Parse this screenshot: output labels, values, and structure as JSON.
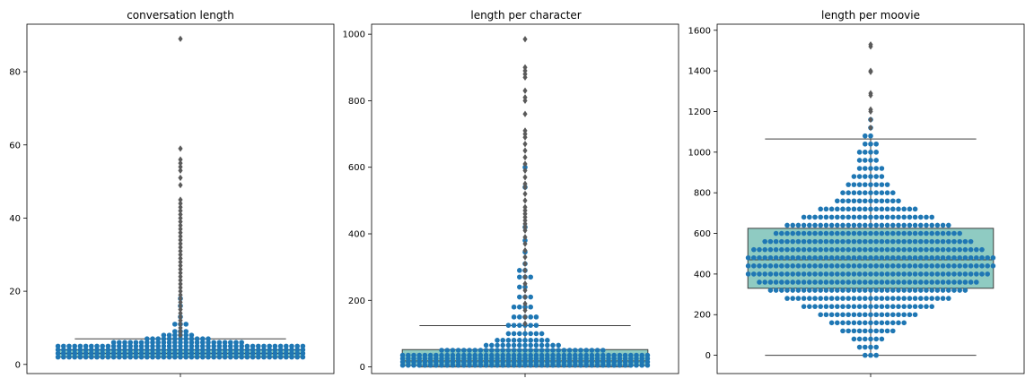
{
  "chart_data": [
    {
      "type": "box+swarm",
      "title": "conversation length",
      "xlabel": "",
      "ylabel": "",
      "ylim": [
        -2.5,
        93
      ],
      "yticks": [
        0,
        20,
        40,
        60,
        80
      ],
      "box": {
        "q1": 2,
        "median": 3,
        "q3": 4,
        "whisker_low": 2,
        "whisker_high": 7
      },
      "outliers": [
        8,
        9,
        10,
        11,
        12,
        13,
        14,
        15,
        16,
        17,
        18,
        19,
        20,
        21,
        22,
        23,
        24,
        25,
        26,
        27,
        28,
        29,
        30,
        31,
        32,
        33,
        34,
        35,
        36,
        37,
        38,
        39,
        40,
        41,
        42,
        43,
        44,
        45,
        49,
        51,
        53,
        54,
        55,
        56,
        59,
        89
      ],
      "swarm_levels": [
        {
          "y": 2,
          "count": 120
        },
        {
          "y": 3,
          "count": 110
        },
        {
          "y": 4,
          "count": 90
        },
        {
          "y": 5,
          "count": 80
        },
        {
          "y": 6,
          "count": 24
        },
        {
          "y": 7,
          "count": 12
        },
        {
          "y": 8,
          "count": 6
        },
        {
          "y": 9,
          "count": 3
        },
        {
          "y": 11,
          "count": 3
        },
        {
          "y": 13,
          "count": 1
        },
        {
          "y": 16,
          "count": 1
        },
        {
          "y": 18,
          "count": 1
        }
      ],
      "box_color": "#8fcbc2",
      "point_color": "#1f77b4"
    },
    {
      "type": "box+swarm",
      "title": "length per character",
      "xlabel": "",
      "ylabel": "",
      "ylim": [
        -20,
        1030
      ],
      "yticks": [
        0,
        200,
        400,
        600,
        800,
        1000
      ],
      "box": {
        "q1": 4,
        "median": 18,
        "q3": 52,
        "whisker_low": 0,
        "whisker_high": 124
      },
      "outliers": [
        130,
        150,
        170,
        190,
        210,
        230,
        250,
        270,
        290,
        310,
        330,
        350,
        370,
        390,
        410,
        420,
        430,
        440,
        450,
        460,
        470,
        480,
        500,
        520,
        540,
        550,
        570,
        590,
        610,
        630,
        650,
        670,
        690,
        700,
        710,
        760,
        800,
        810,
        830,
        870,
        880,
        890,
        900,
        985
      ],
      "swarm_levels": [
        {
          "y": 5,
          "count": 100
        },
        {
          "y": 15,
          "count": 90
        },
        {
          "y": 25,
          "count": 80
        },
        {
          "y": 35,
          "count": 60
        },
        {
          "y": 50,
          "count": 30
        },
        {
          "y": 65,
          "count": 14
        },
        {
          "y": 80,
          "count": 10
        },
        {
          "y": 100,
          "count": 7
        },
        {
          "y": 125,
          "count": 6
        },
        {
          "y": 150,
          "count": 5
        },
        {
          "y": 180,
          "count": 4
        },
        {
          "y": 210,
          "count": 3
        },
        {
          "y": 240,
          "count": 2
        },
        {
          "y": 270,
          "count": 3
        },
        {
          "y": 290,
          "count": 2
        },
        {
          "y": 310,
          "count": 1
        },
        {
          "y": 345,
          "count": 1
        },
        {
          "y": 380,
          "count": 1
        },
        {
          "y": 420,
          "count": 1
        },
        {
          "y": 540,
          "count": 1
        },
        {
          "y": 600,
          "count": 1
        }
      ],
      "box_color": "#8fcbc2",
      "point_color": "#1f77b4"
    },
    {
      "type": "box+swarm",
      "title": "length per moovie",
      "xlabel": "",
      "ylabel": "",
      "ylim": [
        -90,
        1630
      ],
      "yticks": [
        0,
        200,
        400,
        600,
        800,
        1000,
        1200,
        1400,
        1600
      ],
      "box": {
        "q1": 330,
        "median": 470,
        "q3": 625,
        "whisker_low": 0,
        "whisker_high": 1065
      },
      "outliers": [
        1120,
        1160,
        1200,
        1210,
        1280,
        1290,
        1395,
        1400,
        1520,
        1530
      ],
      "swarm_levels": [
        {
          "y": 0,
          "count": 3
        },
        {
          "y": 40,
          "count": 4
        },
        {
          "y": 80,
          "count": 6
        },
        {
          "y": 120,
          "count": 10
        },
        {
          "y": 160,
          "count": 14
        },
        {
          "y": 200,
          "count": 18
        },
        {
          "y": 240,
          "count": 24
        },
        {
          "y": 280,
          "count": 30
        },
        {
          "y": 320,
          "count": 36
        },
        {
          "y": 360,
          "count": 40
        },
        {
          "y": 400,
          "count": 44
        },
        {
          "y": 440,
          "count": 48
        },
        {
          "y": 480,
          "count": 50
        },
        {
          "y": 520,
          "count": 42
        },
        {
          "y": 560,
          "count": 38
        },
        {
          "y": 600,
          "count": 34
        },
        {
          "y": 640,
          "count": 30
        },
        {
          "y": 680,
          "count": 24
        },
        {
          "y": 720,
          "count": 18
        },
        {
          "y": 760,
          "count": 12
        },
        {
          "y": 800,
          "count": 10
        },
        {
          "y": 840,
          "count": 8
        },
        {
          "y": 880,
          "count": 6
        },
        {
          "y": 920,
          "count": 5
        },
        {
          "y": 960,
          "count": 4
        },
        {
          "y": 1000,
          "count": 4
        },
        {
          "y": 1040,
          "count": 3
        },
        {
          "y": 1080,
          "count": 2
        },
        {
          "y": 1120,
          "count": 1
        },
        {
          "y": 1160,
          "count": 1
        }
      ],
      "box_color": "#8fcbc2",
      "point_color": "#1f77b4"
    }
  ]
}
